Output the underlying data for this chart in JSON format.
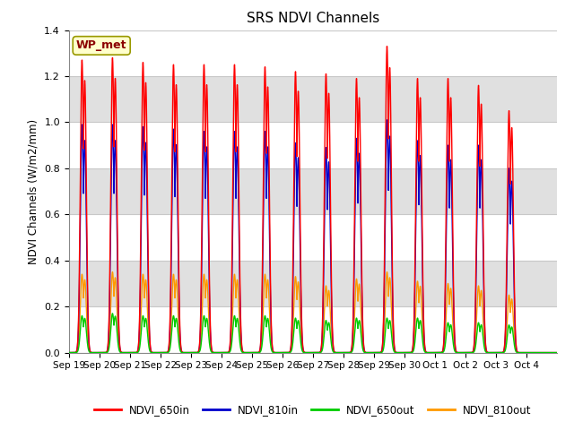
{
  "title": "SRS NDVI Channels",
  "ylabel": "NDVI Channels (W/m2/mm)",
  "xlabel": "",
  "annotation": "WP_met",
  "ylim": [
    0,
    1.4
  ],
  "yticks": [
    0.0,
    0.2,
    0.4,
    0.6,
    0.8,
    1.0,
    1.2,
    1.4
  ],
  "xtick_labels": [
    "Sep 19",
    "Sep 20",
    "Sep 21",
    "Sep 22",
    "Sep 23",
    "Sep 24",
    "Sep 25",
    "Sep 26",
    "Sep 27",
    "Sep 28",
    "Sep 29",
    "Sep 30",
    "Oct 1",
    "Oct 2",
    "Oct 3",
    "Oct 4"
  ],
  "series": {
    "NDVI_650in": {
      "color": "#ff0000",
      "lw": 1.0
    },
    "NDVI_810in": {
      "color": "#0000cc",
      "lw": 1.0
    },
    "NDVI_650out": {
      "color": "#00cc00",
      "lw": 1.0
    },
    "NDVI_810out": {
      "color": "#ff9900",
      "lw": 1.0
    }
  },
  "legend_labels": [
    "NDVI_650in",
    "NDVI_810in",
    "NDVI_650out",
    "NDVI_810out"
  ],
  "legend_colors": [
    "#ff0000",
    "#0000cc",
    "#00cc00",
    "#ff9900"
  ],
  "peak_heights_650in": [
    1.27,
    1.28,
    1.26,
    1.25,
    1.25,
    1.25,
    1.24,
    1.22,
    1.21,
    1.19,
    1.33,
    1.19,
    1.19,
    1.16,
    1.05,
    0.0
  ],
  "peak_heights_810in": [
    0.99,
    0.99,
    0.98,
    0.97,
    0.96,
    0.96,
    0.96,
    0.91,
    0.89,
    0.93,
    1.01,
    0.92,
    0.9,
    0.9,
    0.8,
    0.0
  ],
  "peak_heights_650out": [
    0.16,
    0.17,
    0.16,
    0.16,
    0.16,
    0.16,
    0.16,
    0.15,
    0.14,
    0.15,
    0.15,
    0.15,
    0.13,
    0.13,
    0.12,
    0.0
  ],
  "peak_heights_810out": [
    0.34,
    0.35,
    0.34,
    0.34,
    0.34,
    0.34,
    0.34,
    0.33,
    0.29,
    0.32,
    0.35,
    0.31,
    0.3,
    0.29,
    0.25,
    0.0
  ],
  "background_color": "#ffffff",
  "grid_color": "#c8c8c8",
  "band_color": "#e0e0e0"
}
